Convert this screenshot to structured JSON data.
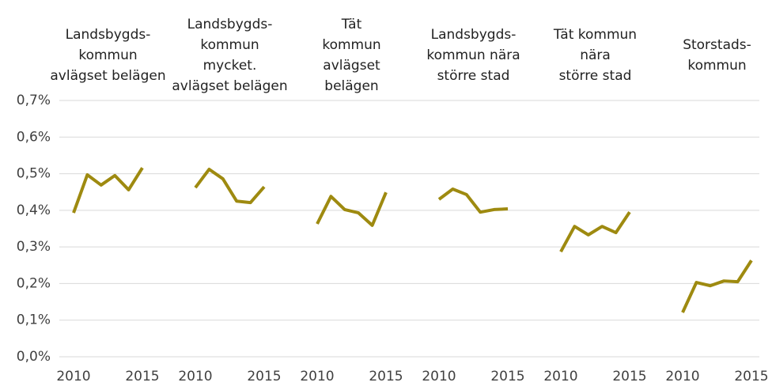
{
  "chart_data": {
    "type": "line",
    "categories": [
      "2010",
      null,
      null,
      null,
      null,
      "2015"
    ],
    "ylim": [
      0,
      0.7
    ],
    "yticks": [
      {
        "value": 0,
        "label": "0,0%"
      },
      {
        "value": 0.1,
        "label": "0,1%"
      },
      {
        "value": 0.2,
        "label": "0,2%"
      },
      {
        "value": 0.3,
        "label": "0,3%"
      },
      {
        "value": 0.4,
        "label": "0,4%"
      },
      {
        "value": 0.5,
        "label": "0,5%"
      },
      {
        "value": 0.6,
        "label": "0,6%"
      },
      {
        "value": 0.7,
        "label": "0,7%"
      }
    ],
    "grid": true,
    "series": [
      {
        "name": "Landsbygds-\nkommun\navlägset belägen",
        "color": "#9e8a10",
        "values": [
          0.393,
          0.497,
          0.469,
          0.495,
          0.456,
          0.516
        ]
      },
      {
        "name": "Landsbygds-\nkommun\nmycket.\navlägset belägen",
        "color": "#9e8a10",
        "values": [
          0.462,
          0.512,
          0.486,
          0.425,
          0.421,
          0.464
        ]
      },
      {
        "name": "Tät\nkommun\navlägset\nbelägen",
        "color": "#9e8a10",
        "values": [
          0.363,
          0.438,
          0.402,
          0.393,
          0.359,
          0.449
        ]
      },
      {
        "name": "Landsbygds-\nkommun nära\nstörre stad",
        "color": "#9e8a10",
        "values": [
          0.43,
          0.458,
          0.443,
          0.395,
          0.402,
          0.404
        ]
      },
      {
        "name": "Tät kommun\nnära\nstörre stad",
        "color": "#9e8a10",
        "values": [
          0.287,
          0.356,
          0.333,
          0.356,
          0.339,
          0.395
        ]
      },
      {
        "name": "Storstads-\nkommun",
        "color": "#9e8a10",
        "values": [
          0.121,
          0.203,
          0.194,
          0.207,
          0.205,
          0.263
        ]
      }
    ]
  }
}
